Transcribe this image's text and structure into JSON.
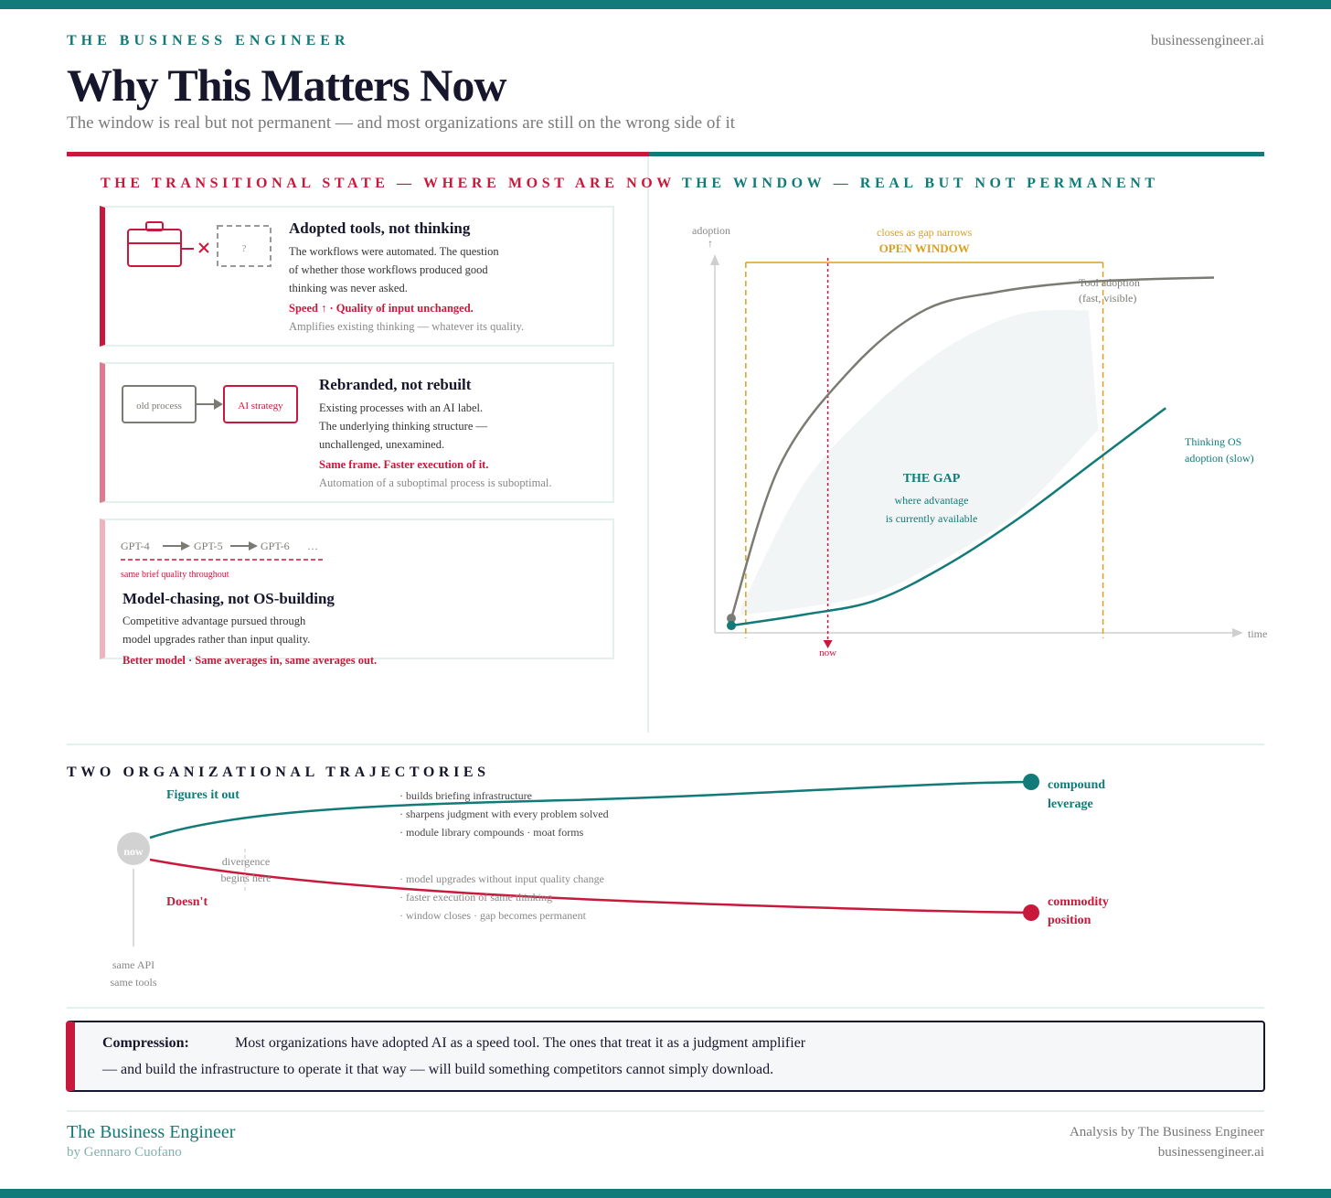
{
  "header": {
    "brand": "THE BUSINESS ENGINEER",
    "site": "businessengineer.ai",
    "title": "Why This Matters Now",
    "subtitle": "The window is real but not permanent — and most organizations are still on the wrong side of it"
  },
  "left_section": {
    "heading": "THE TRANSITIONAL STATE — WHERE MOST ARE NOW",
    "cards": [
      {
        "title": "Adopted tools, not thinking",
        "body": [
          "The workflows were automated. The question",
          "of whether those workflows produced good",
          "thinking was never asked."
        ],
        "highlight": "Speed ↑ · Quality of input unchanged.",
        "note": "Amplifies existing thinking — whatever its quality.",
        "icon_placeholder": "?"
      },
      {
        "title": "Rebranded, not rebuilt",
        "body": [
          "Existing processes with an AI label.",
          "The underlying thinking structure —",
          "unchallenged, unexamined."
        ],
        "highlight": "Same frame. Faster execution of it.",
        "note": "Automation of a suboptimal process is suboptimal.",
        "box_from": "old process",
        "box_to": "AI strategy"
      },
      {
        "title": "Model-chasing, not OS-building",
        "body": [
          "Competitive advantage pursued through",
          "model upgrades rather than input quality."
        ],
        "highlight": "Better model · Same averages in, same averages out.",
        "models": [
          "GPT-4",
          "GPT-5",
          "GPT-6",
          "…"
        ],
        "models_note": "same brief quality throughout"
      }
    ]
  },
  "right_section": {
    "heading": "THE WINDOW — REAL BUT NOT PERMANENT"
  },
  "chart_data": {
    "type": "line",
    "xlabel": "time",
    "ylabel": "adoption",
    "series": [
      {
        "name": "Tool adoption (fast, visible)",
        "label_lines": [
          "Tool adoption",
          "(fast, visible)"
        ],
        "color": "#7b7b74",
        "x": [
          0,
          10,
          25,
          40,
          55,
          70,
          85,
          100
        ],
        "y": [
          3,
          45,
          72,
          88,
          93,
          95.5,
          96.5,
          97
        ]
      },
      {
        "name": "Thinking OS adoption (slow)",
        "label_lines": [
          "Thinking OS",
          "adoption (slow)"
        ],
        "color": "#127a78",
        "x": [
          0,
          15,
          30,
          45,
          60,
          75,
          90
        ],
        "y": [
          1,
          4,
          8,
          18,
          31,
          46,
          61
        ]
      }
    ],
    "gap": {
      "label": "THE GAP",
      "sub": [
        "where advantage",
        "is currently available"
      ]
    },
    "window": {
      "label": "OPEN WINDOW",
      "sub": "closes as gap narrows",
      "start": 3,
      "end": 77
    },
    "now_marker": {
      "label": "now",
      "x": 20
    },
    "xlim": [
      0,
      100
    ],
    "ylim": [
      0,
      110
    ],
    "colors": {
      "window": "#d9a01f",
      "now": "#c8193c",
      "gap_fill": "#f1f5f5"
    }
  },
  "trajectories": {
    "heading": "TWO ORGANIZATIONAL TRAJECTORIES",
    "origin_label": "now",
    "origin_note": [
      "same API",
      "same tools"
    ],
    "divergence": [
      "divergence",
      "begins here"
    ],
    "up": {
      "name": "Figures it out",
      "bullets": [
        "· builds briefing infrastructure",
        "· sharpens judgment with every problem solved",
        "· module library compounds · moat forms"
      ],
      "outcome": [
        "compound",
        "leverage"
      ]
    },
    "down": {
      "name": "Doesn't",
      "bullets": [
        "· model upgrades without input quality change",
        "· faster execution of same thinking",
        "· window closes · gap becomes permanent"
      ],
      "outcome": [
        "commodity",
        "position"
      ]
    }
  },
  "compression": {
    "label": "Compression:",
    "line1": "Most organizations have adopted AI as a speed tool. The ones that treat it as a judgment amplifier",
    "line2": "— and build the infrastructure to operate it that way — will build something competitors cannot simply download."
  },
  "footer": {
    "brand": "The Business Engineer",
    "by": "by Gennaro Cuofano",
    "credit": "Analysis by The Business Engineer",
    "site": "businessengineer.ai"
  }
}
